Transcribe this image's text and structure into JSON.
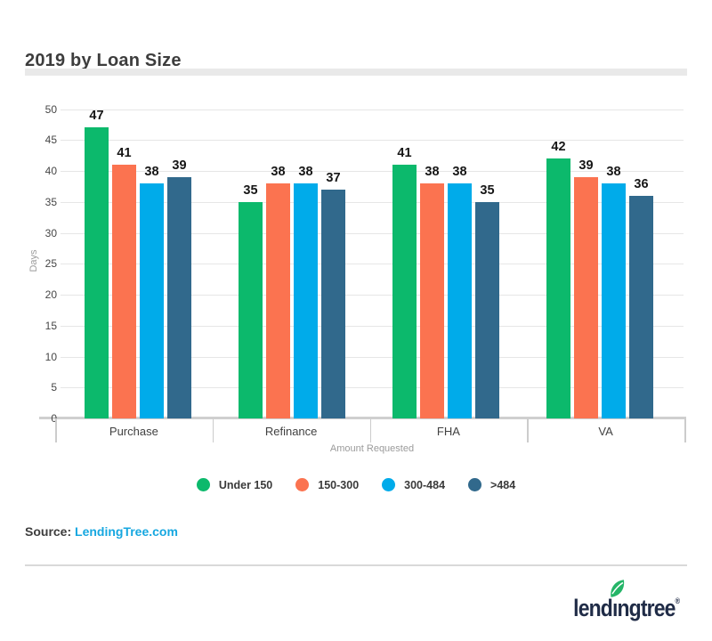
{
  "page": {
    "title": "2019 by Loan Size"
  },
  "chart_data": {
    "type": "bar",
    "title": "2019 by Loan Size",
    "categories": [
      "Purchase",
      "Refinance",
      "FHA",
      "VA"
    ],
    "series": [
      {
        "name": "Under 150",
        "color": "#0cb96c",
        "values": [
          47,
          35,
          41,
          42
        ]
      },
      {
        "name": "150-300",
        "color": "#fb7350",
        "values": [
          41,
          38,
          38,
          39
        ]
      },
      {
        "name": "300-484",
        "color": "#00abea",
        "values": [
          38,
          38,
          38,
          38
        ]
      },
      {
        "name": ">484",
        "color": "#31698c",
        "values": [
          39,
          37,
          35,
          36
        ]
      }
    ],
    "xlabel": "Amount Requested",
    "ylabel": "Days",
    "ylim": [
      0,
      50
    ],
    "ytick_step": 5,
    "grid": true,
    "legend_position": "bottom",
    "value_labels": true
  },
  "source": {
    "label": "Source:",
    "link_text": "LendingTree.com",
    "link_color": "#16a7e0"
  },
  "footer_logo": {
    "pre": "lend",
    "i_char": "ı",
    "post": "ngtree",
    "registered": "®",
    "wordmark_color": "#202c47",
    "leaf_color": "#25b568",
    "leaf_icon": "leaf-icon"
  }
}
